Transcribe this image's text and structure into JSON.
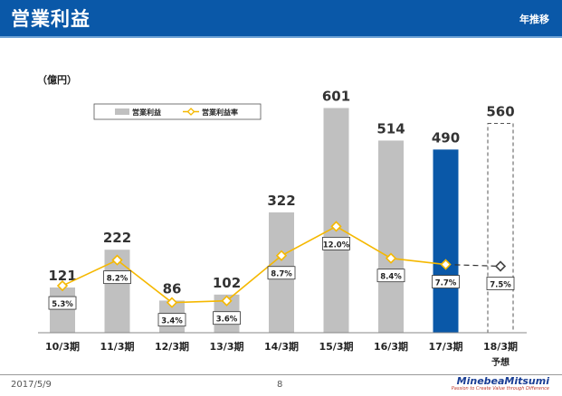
{
  "header": {
    "title": "営業利益",
    "subtitle": "年推移"
  },
  "colors": {
    "header_bg": "#0a58a8",
    "bar_actual": "#c0c0c0",
    "bar_highlight": "#0a58a8",
    "line": "#f5b800",
    "forecast_line": "#333333"
  },
  "chart_data": {
    "type": "bar",
    "unit_label": "（億円）",
    "categories": [
      "10/3期",
      "11/3期",
      "12/3期",
      "13/3期",
      "14/3期",
      "15/3期",
      "16/3期",
      "17/3期",
      "18/3期"
    ],
    "forecast_note": "予想",
    "series": [
      {
        "name": "営業利益",
        "type": "bar",
        "values": [
          121,
          222,
          86,
          102,
          322,
          601,
          514,
          490,
          560
        ],
        "labels": [
          "121",
          "222",
          "86",
          "102",
          "322",
          "601",
          "514",
          "490",
          "560"
        ]
      },
      {
        "name": "営業利益率",
        "type": "line",
        "values": [
          5.3,
          8.2,
          3.4,
          3.6,
          8.7,
          12.0,
          8.4,
          7.7,
          7.5
        ],
        "labels": [
          "5.3%",
          "8.2%",
          "3.4%",
          "3.6%",
          "8.7%",
          "12.0%",
          "8.4%",
          "7.7%",
          "7.5%"
        ]
      }
    ],
    "highlight_index": 7,
    "forecast_index": 8,
    "legend_position": "top-left",
    "grid": false
  },
  "footer": {
    "date": "2017/5/9",
    "page": "8",
    "logo_name": "MinebeaMitsumi",
    "logo_tagline": "Passion to Create Value through Difference"
  }
}
